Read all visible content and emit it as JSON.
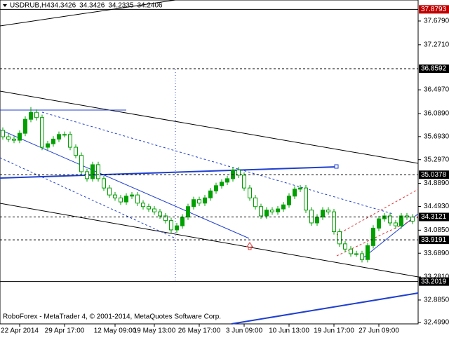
{
  "chart_data": {
    "type": "candlestick",
    "symbol": "USDRUB,H4",
    "quote": [
      34.3426,
      34.3426,
      34.2335,
      34.2406
    ],
    "footer": "RoboForex - MetaTrader 4, © 2001-2014, MetaQuotes Software Corp.",
    "color": "#00a000",
    "categories": [
      null,
      null,
      null,
      "22 Apr 2014",
      null,
      null,
      null,
      null,
      null,
      null,
      null,
      "29 Apr 17:00",
      null,
      null,
      null,
      null,
      null,
      null,
      null,
      null,
      "12 May 09:00",
      null,
      null,
      null,
      null,
      null,
      null,
      "19 May 13:00",
      null,
      null,
      null,
      null,
      null,
      null,
      null,
      "26 May 17:00",
      null,
      null,
      null,
      null,
      null,
      null,
      null,
      "3 Jun 09:00",
      null,
      null,
      null,
      null,
      null,
      null,
      null,
      "10 Jun 13:00",
      null,
      null,
      null,
      null,
      null,
      null,
      null,
      "19 Jun 17:00",
      null,
      null,
      null,
      null,
      null,
      null,
      null,
      "27 Jun 09:00",
      null,
      null,
      null,
      null,
      null,
      null
    ],
    "open": [
      35.8,
      35.69,
      35.65,
      35.63,
      35.75,
      35.99,
      36.11,
      36.02,
      35.51,
      35.57,
      35.65,
      35.73,
      35.73,
      35.51,
      35.37,
      35.09,
      34.97,
      35.21,
      34.97,
      34.81,
      34.69,
      34.64,
      34.57,
      34.67,
      34.69,
      34.55,
      34.49,
      34.45,
      34.4,
      34.33,
      34.25,
      34.09,
      34.16,
      34.31,
      34.49,
      34.61,
      34.55,
      34.64,
      34.76,
      34.85,
      34.91,
      34.97,
      35.12,
      35.03,
      34.81,
      34.64,
      34.49,
      34.33,
      34.43,
      34.4,
      34.45,
      34.52,
      34.67,
      34.79,
      34.81,
      34.43,
      34.21,
      34.31,
      34.43,
      34.4,
      34.06,
      33.85,
      33.76,
      33.68,
      33.68,
      33.58,
      33.82,
      34.12,
      34.28,
      34.33,
      34.21,
      34.16,
      34.33,
      34.31
    ],
    "high": [
      35.85,
      35.74,
      35.7,
      35.8,
      36.04,
      36.2,
      36.16,
      36.07,
      35.62,
      35.7,
      35.78,
      35.78,
      35.78,
      35.56,
      35.42,
      35.14,
      35.26,
      35.26,
      35.02,
      34.86,
      34.74,
      34.69,
      34.72,
      34.74,
      34.74,
      34.6,
      34.54,
      34.5,
      34.45,
      34.38,
      34.3,
      34.21,
      34.36,
      34.54,
      34.66,
      34.66,
      34.69,
      34.81,
      34.9,
      34.96,
      35.02,
      35.17,
      35.17,
      35.08,
      34.86,
      34.69,
      34.54,
      34.48,
      34.48,
      34.5,
      34.57,
      34.72,
      34.84,
      34.86,
      34.86,
      34.48,
      34.36,
      34.48,
      34.48,
      34.45,
      34.11,
      33.9,
      33.81,
      33.73,
      33.73,
      33.87,
      34.17,
      34.33,
      34.38,
      34.38,
      34.26,
      34.38,
      34.38,
      34.36
    ],
    "low": [
      35.64,
      35.6,
      35.58,
      35.58,
      35.7,
      35.94,
      35.97,
      35.46,
      35.46,
      35.52,
      35.6,
      35.68,
      35.46,
      35.32,
      35.04,
      34.92,
      34.92,
      34.92,
      34.76,
      34.64,
      34.59,
      34.52,
      34.52,
      34.62,
      34.5,
      34.44,
      34.4,
      34.35,
      34.28,
      34.2,
      34.04,
      34.04,
      34.11,
      34.26,
      34.44,
      34.5,
      34.5,
      34.59,
      34.71,
      34.8,
      34.86,
      34.92,
      34.98,
      34.76,
      34.59,
      34.44,
      34.28,
      34.28,
      34.35,
      34.35,
      34.4,
      34.47,
      34.62,
      34.74,
      34.38,
      34.16,
      34.16,
      34.26,
      34.35,
      34.01,
      33.8,
      33.71,
      33.63,
      33.63,
      33.53,
      33.53,
      33.77,
      34.07,
      34.23,
      34.16,
      34.11,
      34.11,
      34.26,
      34.19
    ],
    "close": [
      35.69,
      35.65,
      35.63,
      35.75,
      35.99,
      36.11,
      36.02,
      35.51,
      35.57,
      35.65,
      35.73,
      35.73,
      35.51,
      35.37,
      35.09,
      34.97,
      35.21,
      34.97,
      34.81,
      34.69,
      34.64,
      34.57,
      34.67,
      34.69,
      34.55,
      34.49,
      34.45,
      34.4,
      34.33,
      34.25,
      34.09,
      34.16,
      34.31,
      34.49,
      34.61,
      34.55,
      34.64,
      34.76,
      34.85,
      34.91,
      34.97,
      35.12,
      35.03,
      34.81,
      34.64,
      34.49,
      34.33,
      34.43,
      34.4,
      34.45,
      34.52,
      34.67,
      34.79,
      34.81,
      34.43,
      34.21,
      34.31,
      34.43,
      34.4,
      34.06,
      33.85,
      33.76,
      33.68,
      33.68,
      33.58,
      33.82,
      34.12,
      34.28,
      34.33,
      34.21,
      34.16,
      34.33,
      34.31,
      34.24
    ],
    "ylim": [
      32.475,
      38.04
    ],
    "yticks": [
      {
        "value": 37.679,
        "label": "37.6790"
      },
      {
        "value": 37.271,
        "label": "37.2710"
      },
      {
        "value": 36.497,
        "label": "36.4970"
      },
      {
        "value": 36.089,
        "label": "36.0890"
      },
      {
        "value": 35.693,
        "label": "35.6930"
      },
      {
        "value": 35.297,
        "label": "35.2970"
      },
      {
        "value": 34.889,
        "label": "34.8890"
      },
      {
        "value": 34.493,
        "label": "34.4930"
      },
      {
        "value": 34.085,
        "label": "34.0850"
      },
      {
        "value": 33.689,
        "label": "33.6890"
      },
      {
        "value": 33.281,
        "label": "33.2810"
      },
      {
        "value": 32.885,
        "label": "32.8850"
      },
      {
        "value": 32.499,
        "label": "32.4990"
      }
    ],
    "levels": [
      37.8793,
      36.8592,
      35.0378,
      34.3121,
      33.9191,
      33.2019
    ],
    "level_colors": [
      "#c00000",
      "#000000",
      "#000000",
      "#000000",
      "#000000",
      "#000000"
    ],
    "level_styles": [
      "solid",
      "dashed",
      "dashed",
      "dashed",
      "dashed",
      "solid"
    ]
  }
}
